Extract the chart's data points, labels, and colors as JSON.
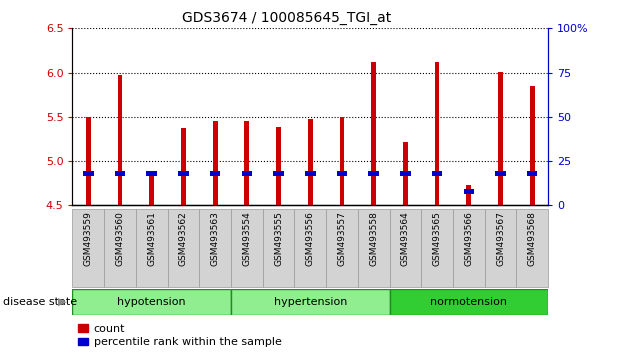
{
  "title": "GDS3674 / 100085645_TGI_at",
  "samples": [
    "GSM493559",
    "GSM493560",
    "GSM493561",
    "GSM493562",
    "GSM493563",
    "GSM493554",
    "GSM493555",
    "GSM493556",
    "GSM493557",
    "GSM493558",
    "GSM493564",
    "GSM493565",
    "GSM493566",
    "GSM493567",
    "GSM493568"
  ],
  "count_values": [
    5.5,
    5.97,
    4.88,
    5.37,
    5.45,
    5.45,
    5.38,
    5.48,
    5.5,
    6.12,
    5.22,
    6.12,
    4.73,
    6.01,
    5.85
  ],
  "percentile_values": [
    18,
    18,
    18,
    18,
    18,
    18,
    18,
    18,
    18,
    18,
    18,
    18,
    8,
    18,
    18
  ],
  "ylim": [
    4.5,
    6.5
  ],
  "y2lim": [
    0,
    100
  ],
  "yticks": [
    4.5,
    5.0,
    5.5,
    6.0,
    6.5
  ],
  "y2ticks": [
    0,
    25,
    50,
    75,
    100
  ],
  "bar_color": "#CC0000",
  "percentile_color": "#0000CC",
  "bar_width": 0.15,
  "baseline": 4.5,
  "legend_count_label": "count",
  "legend_percentile_label": "percentile rank within the sample",
  "disease_state_label": "disease state",
  "grid_color": "#000000",
  "tick_label_color_left": "#CC0000",
  "tick_label_color_right": "#0000CC",
  "groups": [
    {
      "label": "hypotension",
      "start": 0,
      "end": 5,
      "color": "#90EE90"
    },
    {
      "label": "hypertension",
      "start": 5,
      "end": 10,
      "color": "#90EE90"
    },
    {
      "label": "normotension",
      "start": 10,
      "end": 15,
      "color": "#32CD32"
    }
  ]
}
